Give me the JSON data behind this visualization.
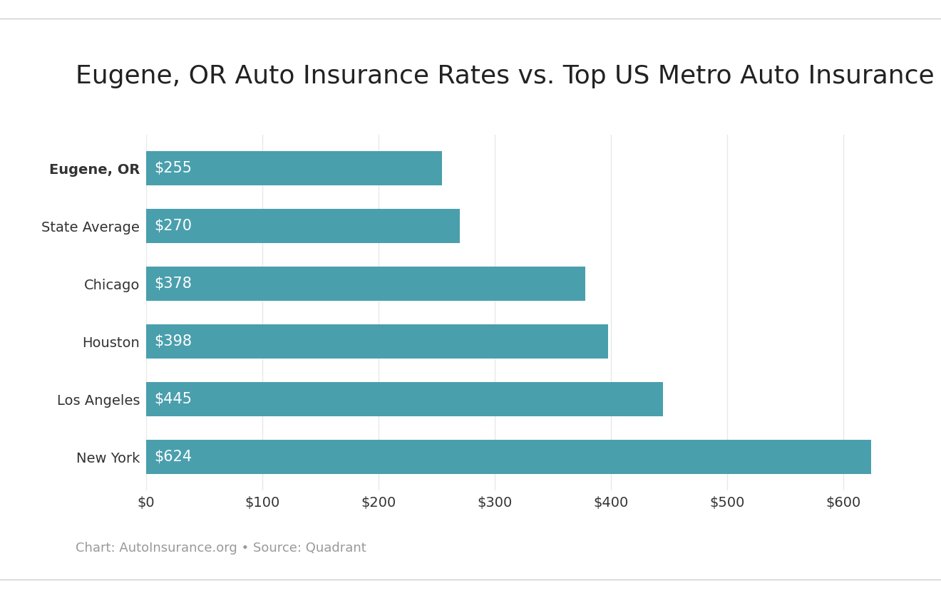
{
  "title": "Eugene, OR Auto Insurance Rates vs. Top US Metro Auto Insurance Rates",
  "categories": [
    "Eugene, OR",
    "State Average",
    "Chicago",
    "Houston",
    "Los Angeles",
    "New York"
  ],
  "values": [
    255,
    270,
    378,
    398,
    445,
    624
  ],
  "bar_color": "#4a9fad",
  "label_color": "#ffffff",
  "xlabel_ticks": [
    0,
    100,
    200,
    300,
    400,
    500,
    600
  ],
  "xlabel_labels": [
    "$0",
    "$100",
    "$200",
    "$300",
    "$400",
    "$500",
    "$600"
  ],
  "footnote": "Chart: AutoInsurance.org • Source: Quadrant",
  "background_color": "#ffffff",
  "bar_height": 0.6,
  "title_fontsize": 26,
  "label_fontsize": 15,
  "tick_fontsize": 14,
  "footnote_fontsize": 13,
  "grid_color": "#e8e8e8",
  "border_top_color": "#cccccc",
  "border_bottom_color": "#cccccc"
}
